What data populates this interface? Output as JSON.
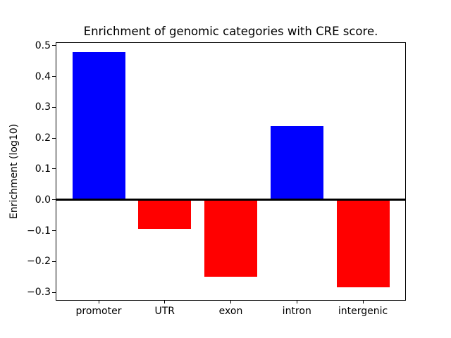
{
  "figure": {
    "background": "#ffffff",
    "text_color": "#000000"
  },
  "chart_data": {
    "type": "bar",
    "title": "Enrichment of genomic categories with CRE score.",
    "xlabel": "",
    "ylabel": "Enrichment (log10)",
    "categories": [
      "promoter",
      "UTR",
      "exon",
      "intron",
      "intergenic"
    ],
    "values": [
      0.48,
      -0.095,
      -0.25,
      0.24,
      -0.285
    ],
    "bar_colors": [
      "#0000ff",
      "#ff0000",
      "#ff0000",
      "#0000ff",
      "#ff0000"
    ],
    "positive_color": "#0000ff",
    "negative_color": "#ff0000",
    "yticks": [
      0.5,
      0.4,
      0.3,
      0.2,
      0.1,
      0.0,
      -0.1,
      -0.2,
      -0.3
    ],
    "ytick_labels": [
      "0.5",
      "0.4",
      "0.3",
      "0.2",
      "0.1",
      "0.0",
      "−0.1",
      "−0.2",
      "−0.3"
    ],
    "ylim": [
      -0.325,
      0.509
    ],
    "xlim": [
      -0.64,
      4.64
    ],
    "bar_width": 0.8,
    "zero_line": true,
    "grid": false,
    "legend": null
  }
}
